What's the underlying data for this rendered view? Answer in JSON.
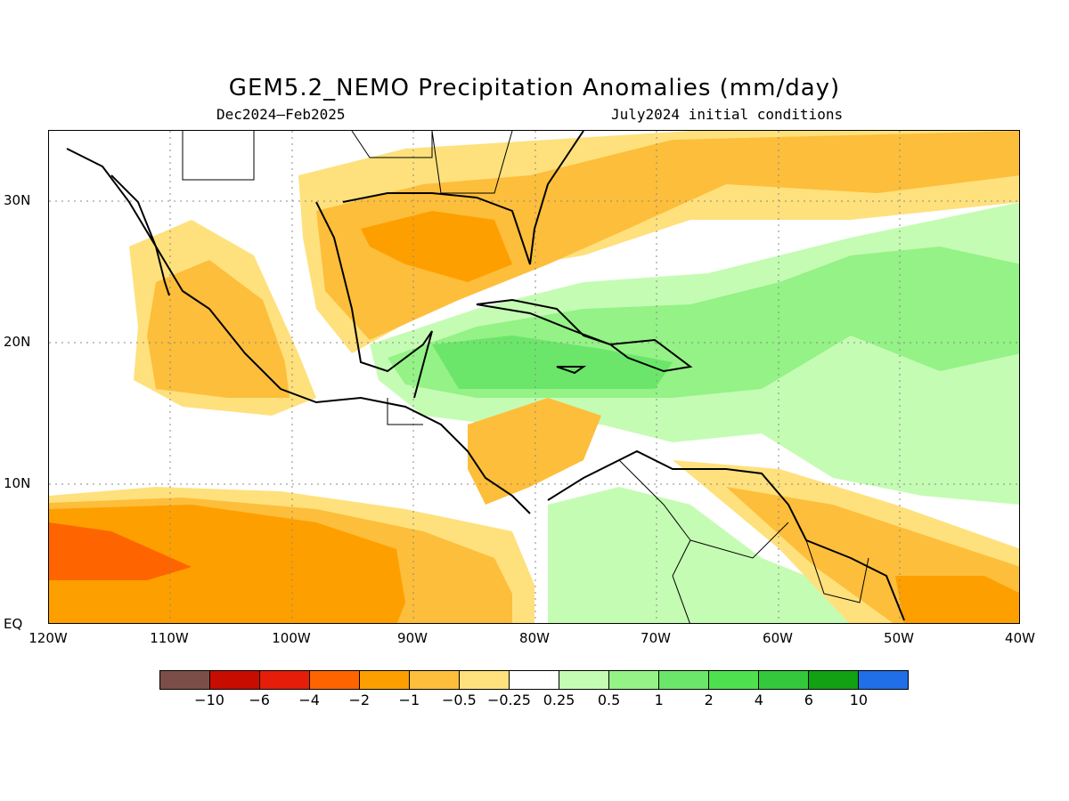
{
  "title": "GEM5.2_NEMO Precipitation Anomalies (mm/day)",
  "subtitle_left": "Dec2024–Feb2025",
  "subtitle_right": "July2024 initial conditions",
  "lon_labels": [
    "120W",
    "110W",
    "100W",
    "90W",
    "80W",
    "70W",
    "60W",
    "50W",
    "40W"
  ],
  "lat_labels": [
    "30N",
    "20N",
    "10N",
    "EQ"
  ],
  "legend": {
    "colors": [
      "#7b4f48",
      "#c70d00",
      "#e51e0a",
      "#fe6500",
      "#fe9f00",
      "#fdbe3b",
      "#fee17d",
      "#ffffff",
      "#c5fcb4",
      "#94f286",
      "#6be66a",
      "#4fe050",
      "#34c83c",
      "#11a112",
      "#206ee8"
    ],
    "labels": [
      "−10",
      "−6",
      "−4",
      "−2",
      "−1",
      "−0.5",
      "−0.25",
      "0.25",
      "0.5",
      "1",
      "2",
      "4",
      "6",
      "10"
    ]
  },
  "anomaly_regions": [
    {
      "name": "gulf-of-mexico-dry",
      "level": -1
    },
    {
      "name": "baja-pacific-dry",
      "level": -0.5
    },
    {
      "name": "caribbean-wet",
      "level": 1
    },
    {
      "name": "atlantic-wet",
      "level": 0.5
    },
    {
      "name": "tropical-pacific-dry",
      "level": -2
    },
    {
      "name": "guiana-dry",
      "level": -1
    }
  ]
}
